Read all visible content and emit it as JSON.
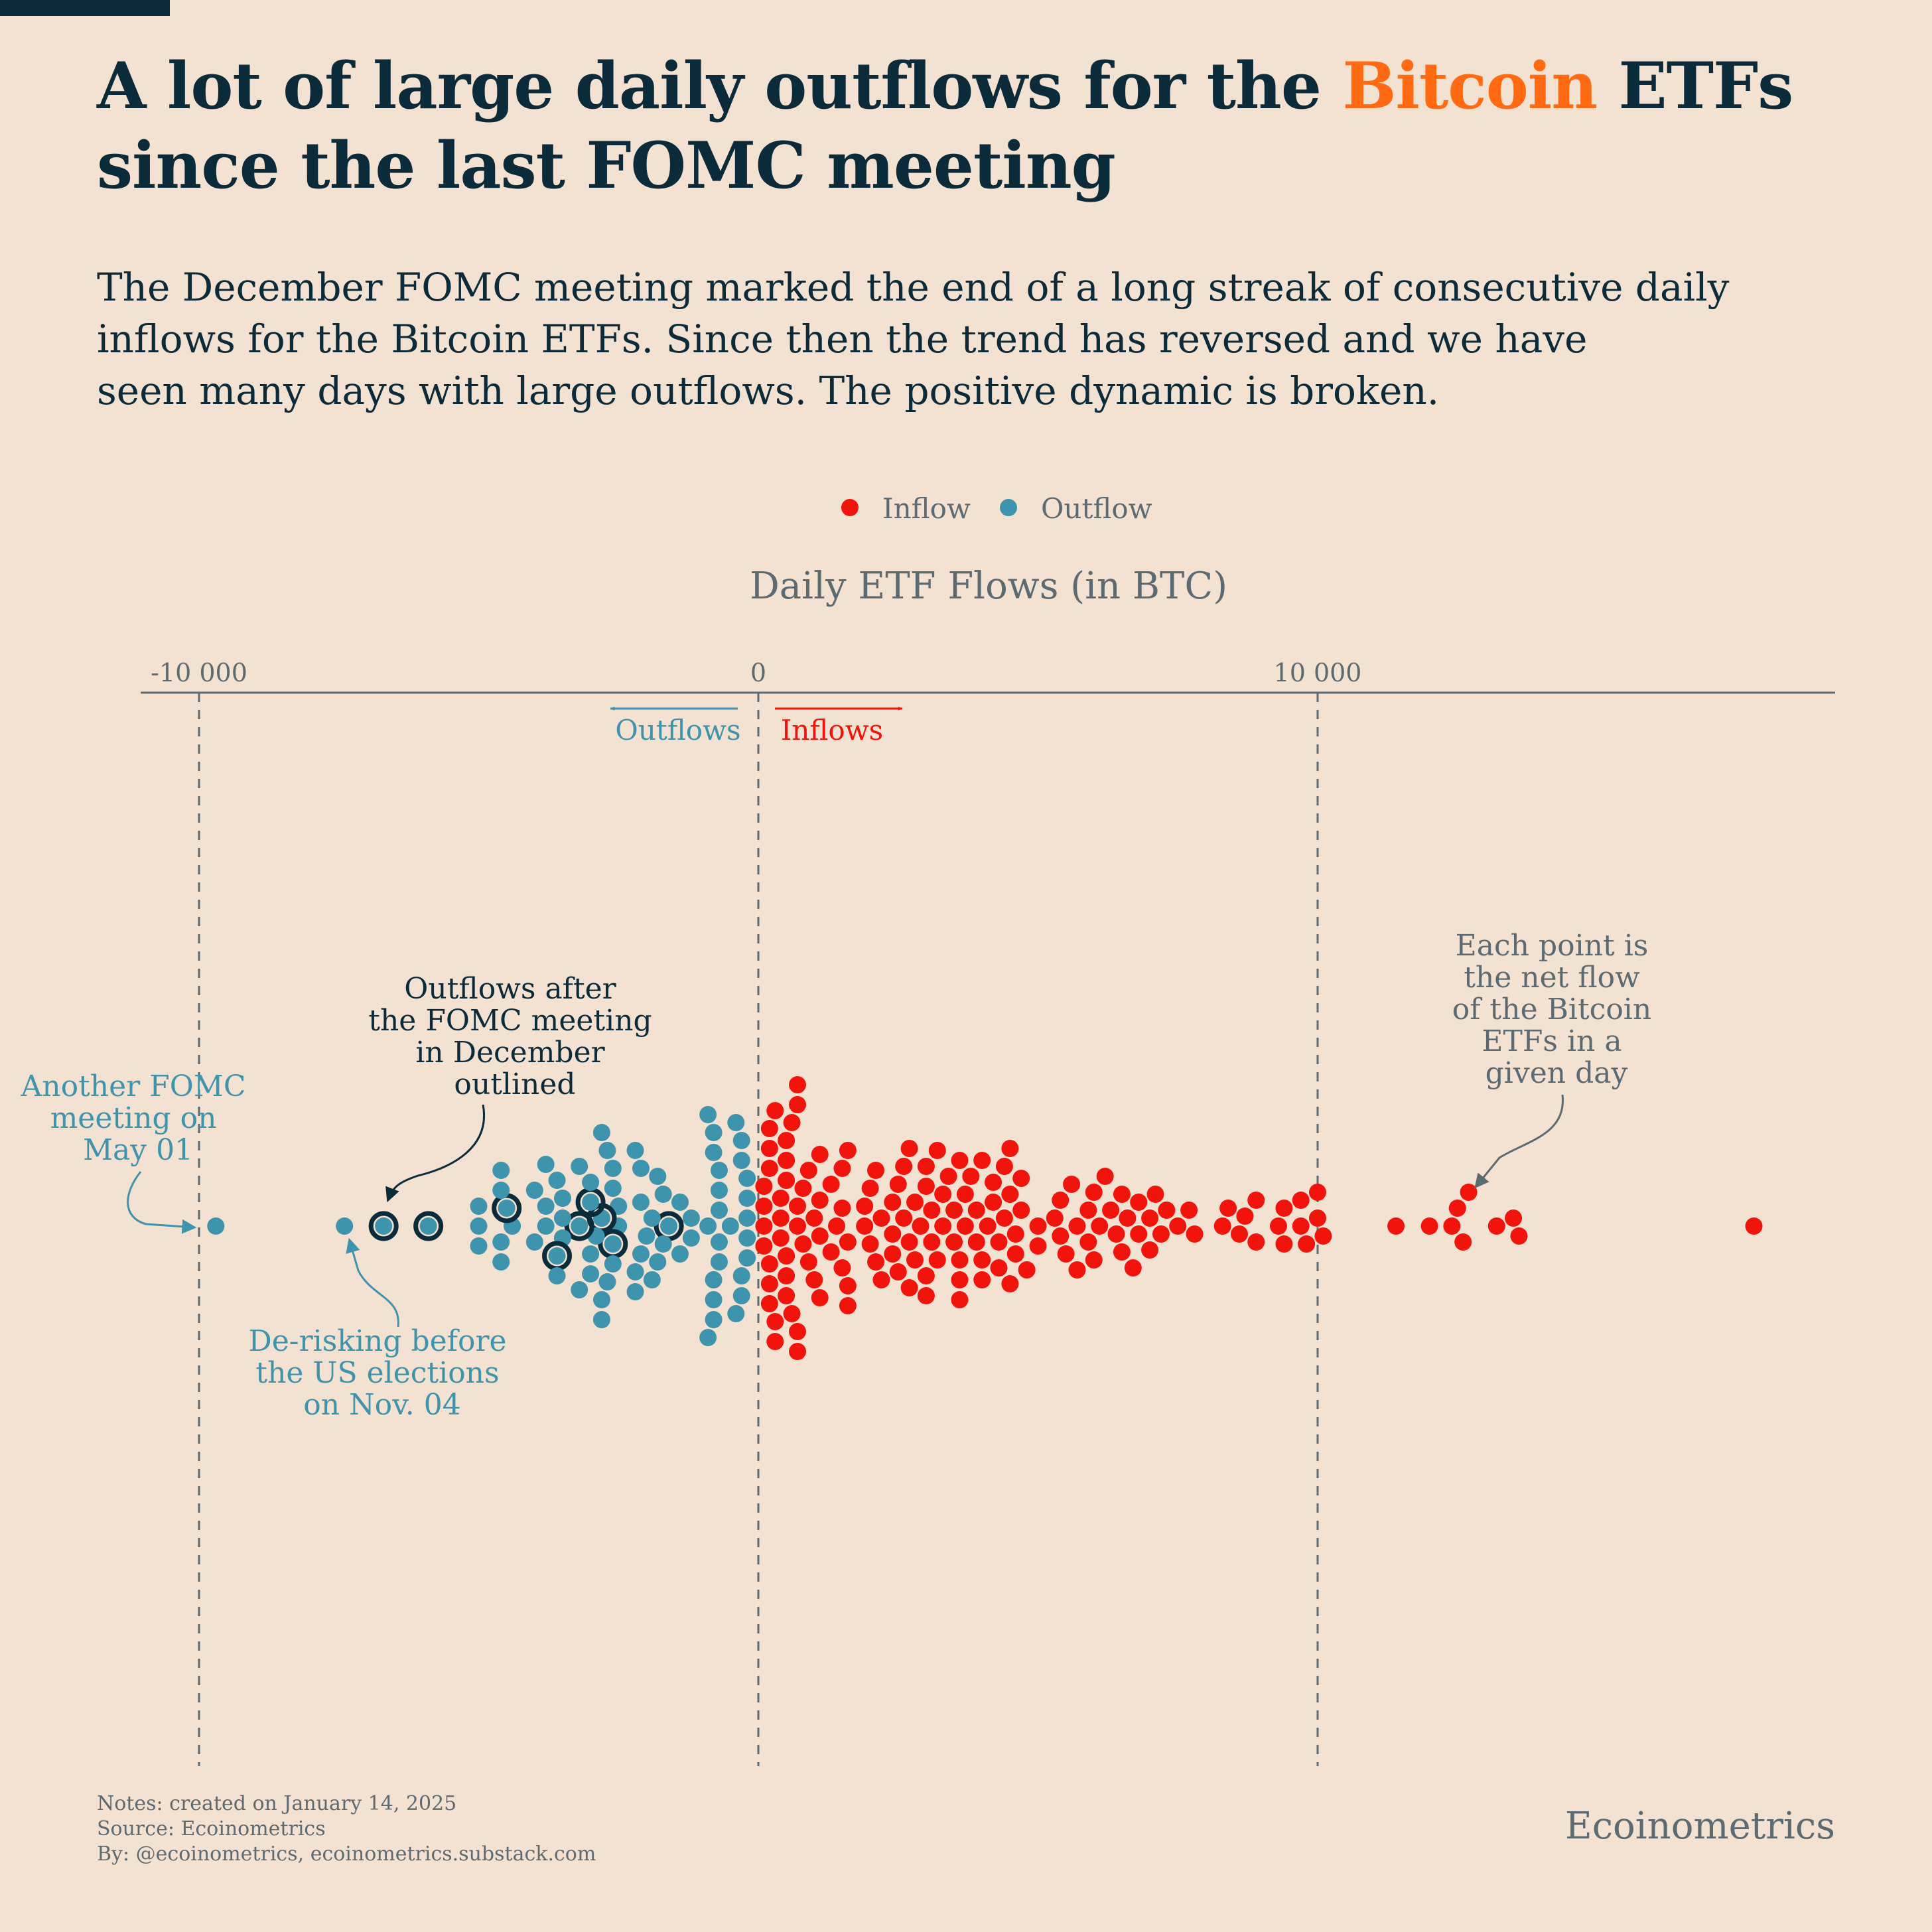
{
  "title": {
    "line1_before": "A lot of large daily outflows for the ",
    "highlight": "Bitcoin",
    "line1_after": " ETFs",
    "line2": "since the last FOMC meeting"
  },
  "subtitle": {
    "line1": "The December FOMC meeting marked the end of a long streak of consecutive daily",
    "line2": "inflows for the Bitcoin ETFs. Since then the trend has reversed and we have",
    "line3": "seen many days with large outflows. The positive dynamic is broken."
  },
  "colors": {
    "background": "#f3e1d1",
    "title": "#0b2b3a",
    "highlight": "#ff6a12",
    "inflow": "#f0140c",
    "outflow": "#3e93ad",
    "highlight_ring": "#0b2b3a",
    "axis": "#5c6a72",
    "annotation_dark": "#0b2b3a"
  },
  "legend": {
    "inflow": "Inflow",
    "outflow": "Outflow"
  },
  "notes": {
    "created": "Notes: created on January 14, 2025",
    "source": "Source: Ecoinometrics",
    "by": "By: @ecoinometrics, ecoinometrics.substack.com"
  },
  "brand": "Ecoinometrics",
  "chart_data": {
    "type": "scatter",
    "subtype": "beeswarm",
    "title": "A lot of large daily outflows for the Bitcoin ETFs since the last FOMC meeting",
    "xlabel": "Daily ETF Flows (in BTC)",
    "ylabel": "",
    "xlim": [
      -10500,
      19500
    ],
    "ticks": [
      {
        "value": -10000,
        "label": "-10 000"
      },
      {
        "value": 0,
        "label": "0"
      },
      {
        "value": 10000,
        "label": "10 000"
      }
    ],
    "direction_labels": {
      "outflows": "Outflows",
      "inflows": "Inflows"
    },
    "grid": "dashed vertical lines at ticks",
    "legend_position": "top-center",
    "series": [
      {
        "name": "Outflow",
        "color": "#3e93ad",
        "values": [
          -9700,
          -7400,
          -6700,
          -5900,
          -5000,
          -5000,
          -5000,
          -4600,
          -4600,
          -4600,
          -4600,
          -4500,
          -4400,
          -4000,
          -4000,
          -3800,
          -3800,
          -3800,
          -3600,
          -3600,
          -3600,
          -3500,
          -3500,
          -3500,
          -3200,
          -3200,
          -3200,
          -3000,
          -3000,
          -3000,
          -3000,
          -2900,
          -2800,
          -2800,
          -2800,
          -2800,
          -2700,
          -2700,
          -2600,
          -2600,
          -2600,
          -2600,
          -2500,
          -2500,
          -2200,
          -2200,
          -2200,
          -2100,
          -2100,
          -2100,
          -2000,
          -1900,
          -1900,
          -1800,
          -1800,
          -1700,
          -1700,
          -1600,
          -1400,
          -1400,
          -1200,
          -1200,
          -900,
          -900,
          -900,
          -800,
          -800,
          -800,
          -800,
          -800,
          -700,
          -700,
          -700,
          -700,
          -700,
          -500,
          -400,
          -400,
          -300,
          -300,
          -300,
          -300,
          -200,
          -200,
          -200,
          -200,
          -200
        ],
        "outlined_values": [
          -6700,
          -5900,
          -4500,
          -3600,
          -3200,
          -3000,
          -2800,
          -2600,
          -1600
        ]
      },
      {
        "name": "Inflow",
        "color": "#f0140c",
        "values": [
          100,
          100,
          100,
          100,
          200,
          200,
          200,
          200,
          200,
          200,
          300,
          300,
          300,
          400,
          400,
          400,
          500,
          500,
          500,
          500,
          500,
          500,
          600,
          600,
          700,
          700,
          700,
          700,
          700,
          700,
          800,
          800,
          900,
          900,
          1000,
          1000,
          1100,
          1100,
          1100,
          1100,
          1300,
          1300,
          1400,
          1500,
          1500,
          1500,
          1600,
          1600,
          1600,
          1600,
          1900,
          1900,
          2000,
          2000,
          2100,
          2100,
          2200,
          2200,
          2400,
          2400,
          2400,
          2500,
          2500,
          2600,
          2600,
          2700,
          2700,
          2700,
          2800,
          2800,
          2900,
          3000,
          3000,
          3000,
          3000,
          3100,
          3100,
          3200,
          3200,
          3300,
          3300,
          3400,
          3500,
          3500,
          3600,
          3600,
          3600,
          3600,
          3700,
          3700,
          3800,
          3900,
          3900,
          4000,
          4000,
          4000,
          4100,
          4200,
          4200,
          4300,
          4300,
          4400,
          4400,
          4500,
          4500,
          4500,
          4600,
          4600,
          4700,
          4700,
          4800,
          5000,
          5000,
          5300,
          5400,
          5400,
          5500,
          5600,
          5700,
          5700,
          5900,
          5900,
          6000,
          6000,
          6100,
          6200,
          6300,
          6400,
          6500,
          6500,
          6600,
          6700,
          6800,
          6800,
          7000,
          7000,
          7100,
          7200,
          7300,
          7500,
          7700,
          7800,
          8300,
          8400,
          8600,
          8700,
          8900,
          8900,
          9300,
          9400,
          9400,
          9700,
          9700,
          9800,
          10000,
          10000,
          10100,
          11400,
          12000,
          12400,
          12500,
          12600,
          12700,
          13200,
          13500,
          13600,
          17800
        ]
      }
    ],
    "annotations": [
      {
        "label": "Another FOMC meeting on May 01",
        "lines": [
          "Another FOMC",
          "meeting on",
          "May 01"
        ],
        "target_value": -9700,
        "color": "#3e93ad"
      },
      {
        "label": "Outflows after the FOMC meeting in December outlined",
        "lines": [
          "Outflows after",
          "the FOMC meeting",
          "in December",
          "outlined"
        ],
        "target_value": -6700,
        "color": "#0b2b3a"
      },
      {
        "label": "De-risking before the US elections on Nov. 04",
        "lines": [
          "De-risking before",
          "the US elections",
          "on Nov. 04"
        ],
        "target_value": -7400,
        "color": "#3e93ad"
      },
      {
        "label": "Each point is the net flow of the Bitcoin ETFs in a given day",
        "lines": [
          "Each point is",
          "the net flow",
          "of the Bitcoin",
          "ETFs in a",
          "given day"
        ],
        "target_value": 12600,
        "color": "#5c6a72"
      }
    ]
  }
}
